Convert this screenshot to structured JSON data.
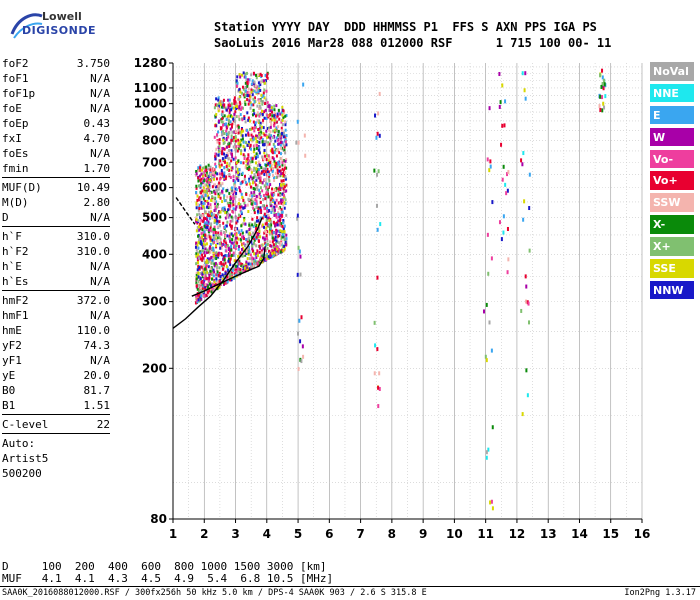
{
  "logo": {
    "line1": "Lowell",
    "line2": "DIGISONDE"
  },
  "header": {
    "row1": "Station YYYY DAY  DDD HHMMSS P1  FFS S AXN PPS IGA PS",
    "row2": "SaoLuis 2016 Mar28 088 012000 RSF      1 715 100 00- 11"
  },
  "params_groups": [
    [
      {
        "k": "foF2",
        "v": "3.750"
      },
      {
        "k": "foF1",
        "v": "N/A"
      },
      {
        "k": "foF1p",
        "v": "N/A"
      },
      {
        "k": "foE",
        "v": "N/A"
      },
      {
        "k": "foEp",
        "v": "0.43"
      },
      {
        "k": "fxI",
        "v": "4.70"
      },
      {
        "k": "foEs",
        "v": "N/A"
      },
      {
        "k": "fmin",
        "v": "1.70"
      }
    ],
    [
      {
        "k": "MUF(D)",
        "v": "10.49"
      },
      {
        "k": "M(D)",
        "v": "2.80"
      },
      {
        "k": "D",
        "v": "N/A"
      }
    ],
    [
      {
        "k": "h`F",
        "v": "310.0"
      },
      {
        "k": "h`F2",
        "v": "310.0"
      },
      {
        "k": "h`E",
        "v": "N/A"
      },
      {
        "k": "h`Es",
        "v": "N/A"
      }
    ],
    [
      {
        "k": "hmF2",
        "v": "372.0"
      },
      {
        "k": "hmF1",
        "v": "N/A"
      },
      {
        "k": "hmE",
        "v": "110.0"
      },
      {
        "k": "yF2",
        "v": "74.3"
      },
      {
        "k": "yF1",
        "v": "N/A"
      },
      {
        "k": "yE",
        "v": "20.0"
      },
      {
        "k": "B0",
        "v": "81.7"
      },
      {
        "k": "B1",
        "v": "1.51"
      }
    ],
    [
      {
        "k": "C-level",
        "v": "22"
      }
    ]
  ],
  "auto_lines": [
    "Auto:",
    "Artist5",
    "500200"
  ],
  "legend": [
    {
      "label": "NoVal",
      "color": "#a8a8a8"
    },
    {
      "label": "NNE",
      "color": "#1ee8ee"
    },
    {
      "label": "E",
      "color": "#3aa6f0"
    },
    {
      "label": "W",
      "color": "#a800a8"
    },
    {
      "label": "Vo-",
      "color": "#ee3e9e"
    },
    {
      "label": "Vo+",
      "color": "#e80030"
    },
    {
      "label": "SSW",
      "color": "#f4b4ae"
    },
    {
      "label": "X-",
      "color": "#0a8a0a"
    },
    {
      "label": "X+",
      "color": "#80c070"
    },
    {
      "label": "SSE",
      "color": "#d8d800"
    },
    {
      "label": "NNW",
      "color": "#1818c8"
    }
  ],
  "mufrow": {
    "d_line": "D     100  200  400  600  800 1000 1500 3000 [km]",
    "muf_line": "MUF   4.1  4.1  4.3  4.5  4.9  5.4  6.8 10.5 [MHz]"
  },
  "footer": {
    "left": "SAA0K_2016088012000.RSF / 300fx256h 50 kHz 5.0 km / DPS-4 SAA0K 903 / 2.6 S 315.8 E",
    "right": "Ion2Png 1.3.17"
  },
  "chart_data": {
    "type": "scatter",
    "title": "",
    "xlabel": "",
    "ylabel": "",
    "xlim": [
      1,
      16
    ],
    "ylim": [
      80,
      1280
    ],
    "x_ticks": [
      1,
      2,
      3,
      4,
      5,
      6,
      7,
      8,
      9,
      10,
      11,
      12,
      13,
      14,
      15,
      16
    ],
    "y_ticks": [
      80,
      200,
      300,
      400,
      500,
      600,
      700,
      800,
      900,
      1000,
      1100,
      1280
    ],
    "y_scale": "log",
    "grid": true,
    "legend_position": "right",
    "trace_curves": [
      {
        "name": "",
        "points": [
          [
            1.0,
            255
          ],
          [
            1.4,
            270
          ],
          [
            1.8,
            290
          ],
          [
            2.2,
            310
          ],
          [
            2.6,
            340
          ],
          [
            3.0,
            380
          ],
          [
            3.4,
            420
          ],
          [
            3.7,
            465
          ],
          [
            3.85,
            500
          ]
        ]
      },
      {
        "name": "",
        "points": [
          [
            1.6,
            310
          ],
          [
            2.0,
            320
          ],
          [
            2.5,
            335
          ],
          [
            3.0,
            350
          ],
          [
            3.5,
            365
          ],
          [
            3.75,
            372
          ],
          [
            3.9,
            390
          ],
          [
            3.95,
            420
          ]
        ]
      },
      {
        "name": "",
        "points": [
          [
            1.1,
            565
          ],
          [
            1.4,
            520
          ],
          [
            1.7,
            480
          ]
        ]
      }
    ],
    "echo_regions": [
      {
        "x": [
          1.7,
          4.6
        ],
        "y": [
          290,
          1200
        ],
        "main": true
      },
      {
        "x": [
          4.9,
          5.2
        ],
        "y": [
          200,
          1240
        ],
        "main": false
      },
      {
        "x": [
          7.4,
          7.6
        ],
        "y": [
          160,
          1080
        ],
        "main": false
      },
      {
        "x": [
          10.9,
          11.2
        ],
        "y": [
          80,
          1150
        ],
        "main": false
      },
      {
        "x": [
          11.4,
          11.7
        ],
        "y": [
          300,
          1240
        ],
        "main": false
      },
      {
        "x": [
          12.1,
          12.4
        ],
        "y": [
          150,
          1270
        ],
        "main": false
      },
      {
        "x": [
          14.6,
          14.8
        ],
        "y": [
          950,
          1240
        ],
        "main": false
      }
    ]
  }
}
